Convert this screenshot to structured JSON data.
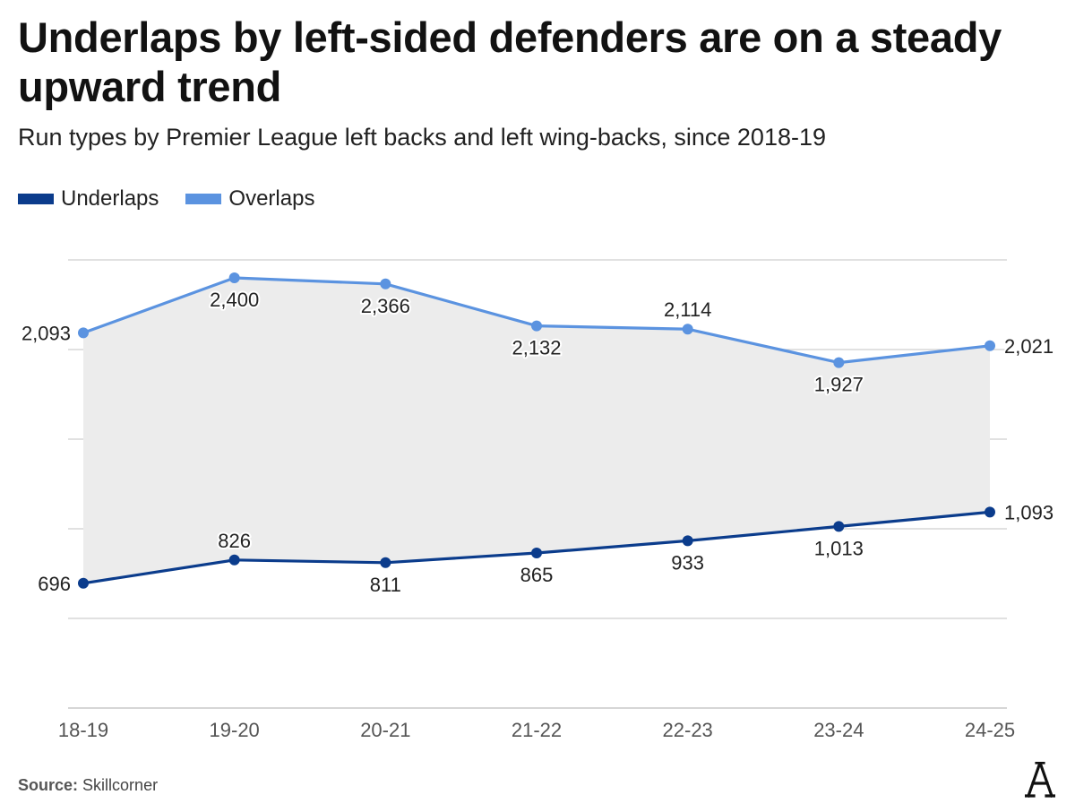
{
  "header": {
    "title": "Underlaps by left-sided defenders are on a steady upward trend",
    "subtitle": "Run types by Premier League left backs and left wing-backs, since 2018-19"
  },
  "legend": {
    "items": [
      {
        "label": "Underlaps",
        "color": "#0b3c8c"
      },
      {
        "label": "Overlaps",
        "color": "#5b93e0"
      }
    ]
  },
  "footer": {
    "source_label": "Source:",
    "source_value": "Skillcorner",
    "logo_icon": "athletic-logo-icon"
  },
  "chart_data": {
    "type": "line",
    "categories": [
      "18-19",
      "19-20",
      "20-21",
      "21-22",
      "22-23",
      "23-24",
      "24-25"
    ],
    "series": [
      {
        "name": "Underlaps",
        "color": "#0b3c8c",
        "values": [
          696,
          826,
          811,
          865,
          933,
          1013,
          1093
        ],
        "labels": [
          "696",
          "826",
          "811",
          "865",
          "933",
          "1,013",
          "1,093"
        ]
      },
      {
        "name": "Overlaps",
        "color": "#5b93e0",
        "values": [
          2093,
          2400,
          2366,
          2132,
          2114,
          1927,
          2021
        ],
        "labels": [
          "2,093",
          "2,400",
          "2,366",
          "2,132",
          "2,114",
          "1,927",
          "2,021"
        ]
      }
    ],
    "area_between_color": "#ececec",
    "ylim": [
      0,
      2500
    ],
    "grid": true,
    "xlabel": "",
    "ylabel": ""
  }
}
